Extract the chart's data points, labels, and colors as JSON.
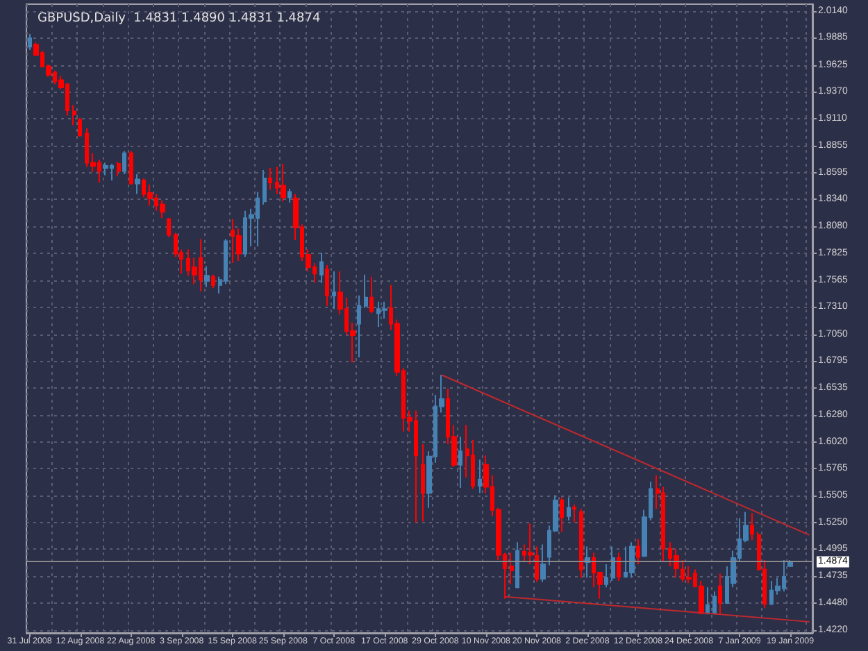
{
  "chart_data": {
    "type": "candlestick",
    "title": "GBPUSD,Daily  1.4831 1.4890 1.4831 1.4874",
    "categories": [
      "31 Jul 2008",
      null,
      null,
      null,
      null,
      null,
      null,
      null,
      "12 Aug 2008",
      null,
      null,
      null,
      null,
      null,
      null,
      null,
      "22 Aug 2008",
      null,
      null,
      null,
      null,
      null,
      null,
      null,
      "3 Sep 2008",
      null,
      null,
      null,
      null,
      null,
      null,
      null,
      "15 Sep 2008",
      null,
      null,
      null,
      null,
      null,
      null,
      null,
      "25 Sep 2008",
      null,
      null,
      null,
      null,
      null,
      null,
      null,
      "7 Oct 2008",
      null,
      null,
      null,
      null,
      null,
      null,
      null,
      "17 Oct 2008",
      null,
      null,
      null,
      null,
      null,
      null,
      null,
      "29 Oct 2008",
      null,
      null,
      null,
      null,
      null,
      null,
      null,
      "10 Nov 2008",
      null,
      null,
      null,
      null,
      null,
      null,
      null,
      "20 Nov 2008",
      null,
      null,
      null,
      null,
      null,
      null,
      null,
      "2 Dec 2008",
      null,
      null,
      null,
      null,
      null,
      null,
      null,
      "12 Dec 2008",
      null,
      null,
      null,
      null,
      null,
      null,
      null,
      "24 Dec 2008",
      null,
      null,
      null,
      null,
      null,
      null,
      null,
      "7 Jan 2009",
      null,
      null,
      null,
      null,
      null,
      null,
      null,
      "19 Jan 2009",
      null,
      null,
      null
    ],
    "series": [
      {
        "type": "candlestick",
        "ohlc": [
          [
            1.98,
            1.992,
            1.977,
            1.988
          ],
          [
            1.982,
            1.984,
            1.971,
            1.972
          ],
          [
            1.974,
            1.976,
            1.96,
            1.961
          ],
          [
            1.961,
            1.963,
            1.951,
            1.953
          ],
          [
            1.955,
            1.957,
            1.944,
            1.947
          ],
          [
            1.948,
            1.952,
            1.939,
            1.941
          ],
          [
            1.944,
            1.945,
            1.914,
            1.919
          ],
          [
            1.918,
            1.924,
            1.905,
            1.915
          ],
          [
            1.91,
            1.912,
            1.894,
            1.895
          ],
          [
            1.897,
            1.902,
            1.865,
            1.869
          ],
          [
            1.869,
            1.878,
            1.86,
            1.866
          ],
          [
            1.869,
            1.872,
            1.85,
            1.861
          ],
          [
            1.864,
            1.869,
            1.857,
            1.866
          ],
          [
            1.864,
            1.868,
            1.852,
            1.866
          ],
          [
            1.868,
            1.87,
            1.856,
            1.861
          ],
          [
            1.861,
            1.88,
            1.858,
            1.878
          ],
          [
            1.878,
            1.88,
            1.848,
            1.849
          ],
          [
            1.849,
            1.858,
            1.839,
            1.853
          ],
          [
            1.852,
            1.854,
            1.836,
            1.839
          ],
          [
            1.84,
            1.848,
            1.828,
            1.835
          ],
          [
            1.835,
            1.839,
            1.823,
            1.828
          ],
          [
            1.829,
            1.833,
            1.816,
            1.822
          ],
          [
            1.815,
            1.816,
            1.798,
            1.8
          ],
          [
            1.8,
            1.802,
            1.779,
            1.782
          ],
          [
            1.783,
            1.786,
            1.763,
            1.777
          ],
          [
            1.777,
            1.786,
            1.761,
            1.766
          ],
          [
            1.769,
            1.778,
            1.753,
            1.762
          ],
          [
            1.778,
            1.796,
            1.746,
            1.757
          ],
          [
            1.756,
            1.77,
            1.75,
            1.761
          ],
          [
            1.76,
            1.762,
            1.749,
            1.752
          ],
          [
            1.752,
            1.76,
            1.744,
            1.757
          ],
          [
            1.756,
            1.796,
            1.753,
            1.794
          ],
          [
            1.804,
            1.815,
            1.773,
            1.799
          ],
          [
            1.799,
            1.806,
            1.775,
            1.782
          ],
          [
            1.782,
            1.823,
            1.779,
            1.816
          ],
          [
            1.816,
            1.825,
            1.789,
            1.819
          ],
          [
            1.816,
            1.841,
            1.789,
            1.835
          ],
          [
            1.832,
            1.862,
            1.829,
            1.854
          ],
          [
            1.854,
            1.864,
            1.843,
            1.85
          ],
          [
            1.85,
            1.865,
            1.839,
            1.845
          ],
          [
            1.847,
            1.868,
            1.832,
            1.836
          ],
          [
            1.836,
            1.844,
            1.831,
            1.841
          ],
          [
            1.835,
            1.839,
            1.795,
            1.807
          ],
          [
            1.807,
            1.81,
            1.775,
            1.779
          ],
          [
            1.781,
            1.786,
            1.765,
            1.769
          ],
          [
            1.769,
            1.773,
            1.754,
            1.763
          ],
          [
            1.762,
            1.783,
            1.754,
            1.774
          ],
          [
            1.767,
            1.771,
            1.732,
            1.742
          ],
          [
            1.742,
            1.765,
            1.729,
            1.745
          ],
          [
            1.745,
            1.765,
            1.724,
            1.729
          ],
          [
            1.729,
            1.74,
            1.704,
            1.708
          ],
          [
            1.708,
            1.716,
            1.678,
            1.704
          ],
          [
            1.715,
            1.742,
            1.683,
            1.732
          ],
          [
            1.732,
            1.762,
            1.73,
            1.74
          ],
          [
            1.74,
            1.76,
            1.725,
            1.727
          ],
          [
            1.725,
            1.736,
            1.712,
            1.729
          ],
          [
            1.728,
            1.736,
            1.72,
            1.729
          ],
          [
            1.73,
            1.752,
            1.709,
            1.715
          ],
          [
            1.715,
            1.719,
            1.665,
            1.669
          ],
          [
            1.67,
            1.673,
            1.612,
            1.625
          ],
          [
            1.625,
            1.632,
            1.612,
            1.622
          ],
          [
            1.622,
            1.632,
            1.525,
            1.589
          ],
          [
            1.58,
            1.6,
            1.526,
            1.553
          ],
          [
            1.553,
            1.593,
            1.539,
            1.588
          ],
          [
            1.588,
            1.647,
            1.582,
            1.636
          ],
          [
            1.636,
            1.666,
            1.63,
            1.643
          ],
          [
            1.643,
            1.653,
            1.6,
            1.607
          ],
          [
            1.607,
            1.618,
            1.578,
            1.58
          ],
          [
            1.58,
            1.607,
            1.558,
            1.593
          ],
          [
            1.595,
            1.618,
            1.568,
            1.589
          ],
          [
            1.589,
            1.604,
            1.557,
            1.56
          ],
          [
            1.56,
            1.585,
            1.553,
            1.566
          ],
          [
            1.58,
            1.589,
            1.553,
            1.559
          ],
          [
            1.559,
            1.57,
            1.531,
            1.537
          ],
          [
            1.537,
            1.539,
            1.489,
            1.494
          ],
          [
            1.494,
            1.496,
            1.452,
            1.481
          ],
          [
            1.483,
            1.496,
            1.466,
            1.479
          ],
          [
            1.463,
            1.506,
            1.462,
            1.498
          ],
          [
            1.497,
            1.504,
            1.488,
            1.494
          ],
          [
            1.496,
            1.524,
            1.485,
            1.494
          ],
          [
            1.493,
            1.502,
            1.468,
            1.471
          ],
          [
            1.471,
            1.504,
            1.468,
            1.485
          ],
          [
            1.492,
            1.522,
            1.484,
            1.517
          ],
          [
            1.517,
            1.551,
            1.516,
            1.546
          ],
          [
            1.546,
            1.549,
            1.516,
            1.53
          ],
          [
            1.531,
            1.549,
            1.527,
            1.539
          ],
          [
            1.539,
            1.542,
            1.525,
            1.538
          ],
          [
            1.535,
            1.538,
            1.472,
            1.48
          ],
          [
            1.487,
            1.502,
            1.472,
            1.491
          ],
          [
            1.491,
            1.496,
            1.463,
            1.477
          ],
          [
            1.477,
            1.477,
            1.452,
            1.466
          ],
          [
            1.466,
            1.485,
            1.463,
            1.472
          ],
          [
            1.472,
            1.502,
            1.469,
            1.491
          ],
          [
            1.491,
            1.496,
            1.469,
            1.473
          ],
          [
            1.473,
            1.502,
            1.472,
            1.477
          ],
          [
            1.477,
            1.506,
            1.472,
            1.502
          ],
          [
            1.502,
            1.509,
            1.485,
            1.492
          ],
          [
            1.493,
            1.537,
            1.492,
            1.53
          ],
          [
            1.53,
            1.564,
            1.527,
            1.557
          ],
          [
            1.557,
            1.57,
            1.538,
            1.553
          ],
          [
            1.553,
            1.559,
            1.487,
            1.5
          ],
          [
            1.5,
            1.506,
            1.483,
            1.491
          ],
          [
            1.493,
            1.5,
            1.472,
            1.481
          ],
          [
            1.48,
            1.489,
            1.468,
            1.471
          ],
          [
            1.472,
            1.483,
            1.467,
            1.471
          ],
          [
            1.476,
            1.48,
            1.463,
            1.464
          ],
          [
            1.464,
            1.469,
            1.437,
            1.438
          ],
          [
            1.438,
            1.463,
            1.437,
            1.446
          ],
          [
            1.438,
            1.459,
            1.437,
            1.454
          ],
          [
            1.464,
            1.476,
            1.437,
            1.448
          ],
          [
            1.448,
            1.483,
            1.447,
            1.473
          ],
          [
            1.467,
            1.498,
            1.463,
            1.491
          ],
          [
            1.491,
            1.529,
            1.488,
            1.509
          ],
          [
            1.508,
            1.535,
            1.506,
            1.522
          ],
          [
            1.522,
            1.534,
            1.508,
            1.514
          ],
          [
            1.513,
            1.516,
            1.479,
            1.48
          ],
          [
            1.48,
            1.489,
            1.443,
            1.447
          ],
          [
            1.447,
            1.469,
            1.446,
            1.46
          ],
          [
            1.46,
            1.472,
            1.456,
            1.464
          ],
          [
            1.462,
            1.489,
            1.459,
            1.473
          ],
          [
            1.4831,
            1.489,
            1.4831,
            1.4874
          ],
          null,
          null,
          null
        ],
        "colors": [
          "#4682b4",
          "#ff0000",
          "#ff0000",
          "#ff0000",
          "#ff0000",
          "#ff0000",
          "#ff0000",
          "#ff0000",
          "#ff0000",
          "#ff0000",
          "#ff0000",
          "#ff0000",
          "#4682b4",
          "#4682b4",
          "#ff0000",
          "#4682b4",
          "#ff0000",
          "#4682b4",
          "#ff0000",
          "#ff0000",
          "#ff0000",
          "#ff0000",
          "#ff0000",
          "#ff0000",
          "#ff0000",
          "#ff0000",
          "#ff0000",
          "#ff0000",
          "#4682b4",
          "#ff0000",
          "#4682b4",
          "#4682b4",
          "#ff0000",
          "#ff0000",
          "#4682b4",
          "#4682b4",
          "#4682b4",
          "#4682b4",
          "#ff0000",
          "#ff0000",
          "#ff0000",
          "#4682b4",
          "#ff0000",
          "#ff0000",
          "#ff0000",
          "#ff0000",
          "#4682b4",
          "#ff0000",
          "#4682b4",
          "#ff0000",
          "#ff0000",
          "#ff0000",
          "#4682b4",
          "#4682b4",
          "#ff0000",
          "#4682b4",
          "#4682b4",
          "#ff0000",
          "#ff0000",
          "#ff0000",
          "#ff0000",
          "#ff0000",
          "#ff0000",
          "#4682b4",
          "#4682b4",
          "#4682b4",
          "#ff0000",
          "#ff0000",
          "#4682b4",
          "#ff0000",
          "#ff0000",
          "#4682b4",
          "#ff0000",
          "#ff0000",
          "#ff0000",
          "#ff0000",
          "#ff0000",
          "#4682b4",
          "#ff0000",
          "#ff0000",
          "#ff0000",
          "#4682b4",
          "#4682b4",
          "#4682b4",
          "#ff0000",
          "#4682b4",
          "#ff0000",
          "#ff0000",
          "#4682b4",
          "#ff0000",
          "#ff0000",
          "#4682b4",
          "#4682b4",
          "#ff0000",
          "#4682b4",
          "#4682b4",
          "#ff0000",
          "#4682b4",
          "#4682b4",
          "#ff0000",
          "#ff0000",
          "#ff0000",
          "#ff0000",
          "#ff0000",
          "#ff0000",
          "#ff0000",
          "#ff0000",
          "#4682b4",
          "#4682b4",
          "#ff0000",
          "#4682b4",
          "#4682b4",
          "#4682b4",
          "#4682b4",
          "#ff0000",
          "#ff0000",
          "#ff0000",
          "#4682b4",
          "#4682b4",
          "#4682b4",
          "#4682b4",
          null,
          null,
          null
        ]
      },
      {
        "type": "line",
        "color": "#c0282d",
        "values": [
          null,
          null,
          null,
          null,
          null,
          null,
          null,
          null,
          null,
          null,
          null,
          null,
          null,
          null,
          null,
          null,
          null,
          null,
          null,
          null,
          null,
          null,
          null,
          null,
          null,
          null,
          null,
          null,
          null,
          null,
          null,
          null,
          null,
          null,
          null,
          null,
          null,
          null,
          null,
          null,
          null,
          null,
          null,
          null,
          null,
          null,
          null,
          null,
          null,
          null,
          null,
          null,
          null,
          null,
          null,
          null,
          null,
          null,
          null,
          null,
          null,
          null,
          null,
          null,
          null,
          1.666,
          null,
          null,
          null,
          null,
          null,
          null,
          null,
          null,
          null,
          null,
          null,
          null,
          null,
          null,
          null,
          null,
          null,
          null,
          null,
          null,
          null,
          null,
          null,
          null,
          null,
          null,
          null,
          null,
          null,
          null,
          null,
          null,
          null,
          null,
          null,
          null,
          null,
          null,
          null,
          null,
          null,
          null,
          null,
          null,
          null,
          null,
          null,
          null,
          null,
          null,
          null,
          null,
          null,
          null,
          null,
          null,
          null,
          1.513
        ]
      },
      {
        "type": "line",
        "color": "#c0282d",
        "values": [
          null,
          null,
          null,
          null,
          null,
          null,
          null,
          null,
          null,
          null,
          null,
          null,
          null,
          null,
          null,
          null,
          null,
          null,
          null,
          null,
          null,
          null,
          null,
          null,
          null,
          null,
          null,
          null,
          null,
          null,
          null,
          null,
          null,
          null,
          null,
          null,
          null,
          null,
          null,
          null,
          null,
          null,
          null,
          null,
          null,
          null,
          null,
          null,
          null,
          null,
          null,
          null,
          null,
          null,
          null,
          null,
          null,
          null,
          null,
          null,
          null,
          null,
          null,
          null,
          null,
          null,
          null,
          null,
          null,
          null,
          null,
          null,
          null,
          null,
          null,
          1.454,
          null,
          null,
          null,
          null,
          null,
          null,
          null,
          null,
          null,
          null,
          null,
          null,
          null,
          null,
          null,
          null,
          null,
          null,
          null,
          null,
          null,
          null,
          null,
          null,
          null,
          null,
          null,
          null,
          null,
          null,
          null,
          null,
          null,
          null,
          null,
          null,
          null,
          null,
          null,
          null,
          null,
          null,
          null,
          null,
          null,
          null,
          null,
          1.43
        ]
      }
    ],
    "ylim": [
      1.4193,
      2.0206
    ],
    "yticks": [
      {
        "value": 2.014,
        "label": "2.0140"
      },
      {
        "value": 1.9885,
        "label": "1.9885"
      },
      {
        "value": 1.9625,
        "label": "1.9625"
      },
      {
        "value": 1.937,
        "label": "1.9370"
      },
      {
        "value": 1.911,
        "label": "1.9110"
      },
      {
        "value": 1.8855,
        "label": "1.8855"
      },
      {
        "value": 1.8595,
        "label": "1.8595"
      },
      {
        "value": 1.834,
        "label": "1.8340"
      },
      {
        "value": 1.808,
        "label": "1.8080"
      },
      {
        "value": 1.7825,
        "label": "1.7825"
      },
      {
        "value": 1.7565,
        "label": "1.7565"
      },
      {
        "value": 1.731,
        "label": "1.7310"
      },
      {
        "value": 1.705,
        "label": "1.7050"
      },
      {
        "value": 1.6795,
        "label": "1.6795"
      },
      {
        "value": 1.6535,
        "label": "1.6535"
      },
      {
        "value": 1.628,
        "label": "1.6280"
      },
      {
        "value": 1.602,
        "label": "1.6020"
      },
      {
        "value": 1.5765,
        "label": "1.5765"
      },
      {
        "value": 1.5505,
        "label": "1.5505"
      },
      {
        "value": 1.525,
        "label": "1.5250"
      },
      {
        "value": 1.4995,
        "label": "1.4995"
      },
      {
        "value": 1.4735,
        "label": "1.4735"
      },
      {
        "value": 1.448,
        "label": "1.4480"
      },
      {
        "value": 1.422,
        "label": "1.4220"
      }
    ],
    "grid": true,
    "marker": "none",
    "line_style": "solid",
    "ref_lines": [
      {
        "axis": "y",
        "value": 1.4874,
        "label": "1.4874",
        "color": "#8a8a8a"
      }
    ]
  }
}
